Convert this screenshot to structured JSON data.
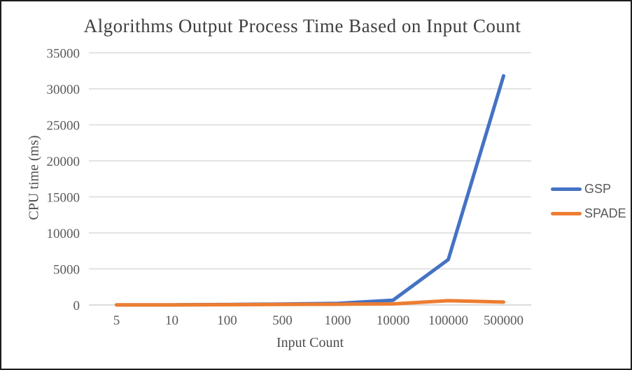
{
  "chart_data": {
    "type": "line",
    "title": "Algorithms Output Process Time Based on Input Count",
    "xlabel": "Input Count",
    "ylabel": "CPU time (ms)",
    "categories": [
      "5",
      "10",
      "100",
      "500",
      "1000",
      "10000",
      "100000",
      "500000"
    ],
    "series": [
      {
        "name": "GSP",
        "color": "#4472C4",
        "values": [
          10,
          15,
          60,
          120,
          220,
          650,
          6300,
          31800
        ]
      },
      {
        "name": "SPADE",
        "color": "#ED7D31",
        "values": [
          10,
          12,
          40,
          70,
          100,
          150,
          600,
          400
        ]
      }
    ],
    "ylim": [
      0,
      35000
    ],
    "y_ticks": [
      0,
      5000,
      10000,
      15000,
      20000,
      25000,
      30000,
      35000
    ],
    "grid": true,
    "legend_position": "right",
    "gridline_color": "#D9D9D9",
    "axis_line_color": "#D0D0D0",
    "tick_text_color": "#595959",
    "title_color": "#404040",
    "background": "#ffffff"
  }
}
